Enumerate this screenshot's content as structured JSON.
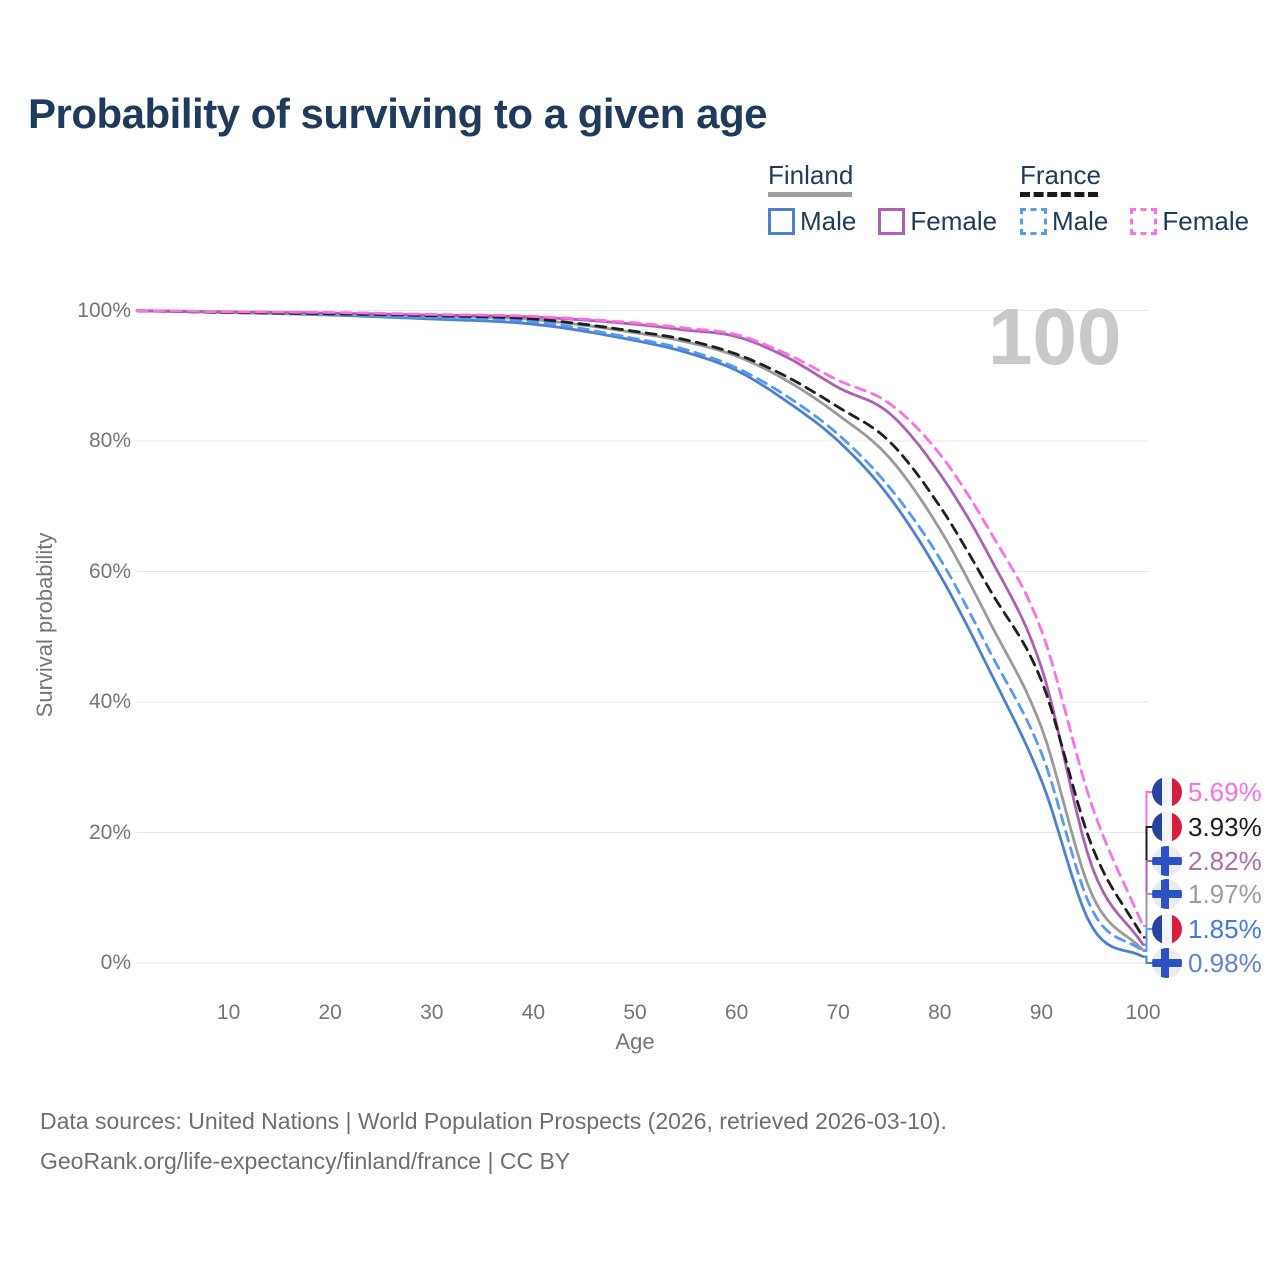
{
  "title": "Probability of surviving to a given age",
  "watermark": "100",
  "legend": {
    "groups": [
      {
        "label": "Finland",
        "line_style": "solid",
        "line_color": "#9e9e9e",
        "items": [
          {
            "label": "Male",
            "color": "#4c80d0",
            "dashed": false
          },
          {
            "label": "Female",
            "color": "#ac60b5",
            "dashed": false
          }
        ]
      },
      {
        "label": "France",
        "line_style": "dashed",
        "line_color": "#1a1a1a",
        "items": [
          {
            "label": "Male",
            "color": "#5599f5",
            "dashed": true
          },
          {
            "label": "Female",
            "color": "#fb71e4",
            "dashed": true
          }
        ]
      }
    ]
  },
  "axes": {
    "y_label": "Survival probability",
    "x_label": "Age",
    "y_ticks": [
      "0%",
      "20%",
      "40%",
      "60%",
      "80%",
      "100%"
    ],
    "x_ticks": [
      "10",
      "20",
      "30",
      "40",
      "50",
      "60",
      "70",
      "80",
      "90",
      "100"
    ]
  },
  "chart_data": {
    "type": "line",
    "title": "Probability of surviving to a given age",
    "xlabel": "Age",
    "ylabel": "Survival probability",
    "xlim": [
      0,
      100
    ],
    "ylim": [
      0,
      100
    ],
    "grid": "horizontal",
    "legend_position": "top-right",
    "x": [
      0,
      10,
      20,
      30,
      40,
      50,
      55,
      60,
      65,
      70,
      75,
      80,
      85,
      90,
      95,
      100
    ],
    "series": [
      {
        "name": "France Female",
        "color": "#fb71e4",
        "dash": true,
        "values": [
          100,
          99.8,
          99.7,
          99.4,
          99.1,
          98.1,
          97.3,
          96.3,
          93.3,
          89.3,
          85.8,
          78.0,
          66.0,
          51.0,
          24.0,
          5.69
        ]
      },
      {
        "name": "France Both sexes",
        "color": "#1f1f1f",
        "dash": true,
        "values": [
          100,
          99.7,
          99.5,
          99.2,
          98.7,
          96.8,
          95.5,
          93.3,
          89.8,
          85.2,
          80.0,
          70.0,
          57.0,
          43.3,
          17.8,
          3.93
        ]
      },
      {
        "name": "Finland Female",
        "color": "#ac60b5",
        "dash": false,
        "values": [
          100,
          99.8,
          99.6,
          99.3,
          99.0,
          97.9,
          97.0,
          96.0,
          92.8,
          88.2,
          84.3,
          75.0,
          62.0,
          45.3,
          14.7,
          2.82
        ]
      },
      {
        "name": "Finland Both sexes",
        "color": "#9a9a9a",
        "dash": false,
        "values": [
          100,
          99.7,
          99.4,
          99.1,
          98.6,
          96.6,
          95.2,
          93.0,
          89.2,
          84.0,
          77.5,
          66.5,
          52.0,
          36.1,
          10.4,
          1.97
        ]
      },
      {
        "name": "France Male",
        "color": "#5599f5",
        "dash": true,
        "values": [
          100,
          99.7,
          99.4,
          98.9,
          98.3,
          95.7,
          94.0,
          91.2,
          86.8,
          81.0,
          73.0,
          62.0,
          47.5,
          32.2,
          8.1,
          1.85
        ]
      },
      {
        "name": "Finland Male",
        "color": "#4c80d0",
        "dash": false,
        "values": [
          100,
          99.7,
          99.3,
          98.7,
          97.9,
          95.4,
          93.6,
          90.8,
          86.0,
          80.0,
          71.5,
          59.5,
          44.5,
          28.0,
          5.5,
          0.98
        ]
      }
    ]
  },
  "end_labels": [
    {
      "value": "5.69%",
      "series": "France Female",
      "flag": "france",
      "color": "#fb71e4"
    },
    {
      "value": "3.93%",
      "series": "France Both sexes",
      "flag": "france",
      "color": "#1c1c1c"
    },
    {
      "value": "2.82%",
      "series": "Finland Female",
      "flag": "finland",
      "color": "#ad6cad"
    },
    {
      "value": "1.97%",
      "series": "Finland Both sexes",
      "flag": "finland",
      "color": "#9c9c9c"
    },
    {
      "value": "1.85%",
      "series": "France Male",
      "flag": "france",
      "color": "#3d7be0"
    },
    {
      "value": "0.98%",
      "series": "Finland Male",
      "flag": "finland",
      "color": "#5f83d4"
    }
  ],
  "flags": {
    "france": {
      "blue": "#2743a0",
      "white": "#f4f4f6",
      "red": "#d81e3f"
    },
    "finland": {
      "bg": "#ececee",
      "cross": "#2a52c4"
    }
  },
  "colors": {
    "title_text": "#1e3a5c",
    "axis_text": "#757575",
    "gridline": "#e7e7e7",
    "watermark": "#c9c9c9",
    "footer_text": "#6e6e6e"
  },
  "footer": {
    "line1": "Data sources: United Nations | World Population Prospects (2026, retrieved 2026-03-10).",
    "line2": "GeoRank.org/life-expectancy/finland/france | CC BY"
  }
}
